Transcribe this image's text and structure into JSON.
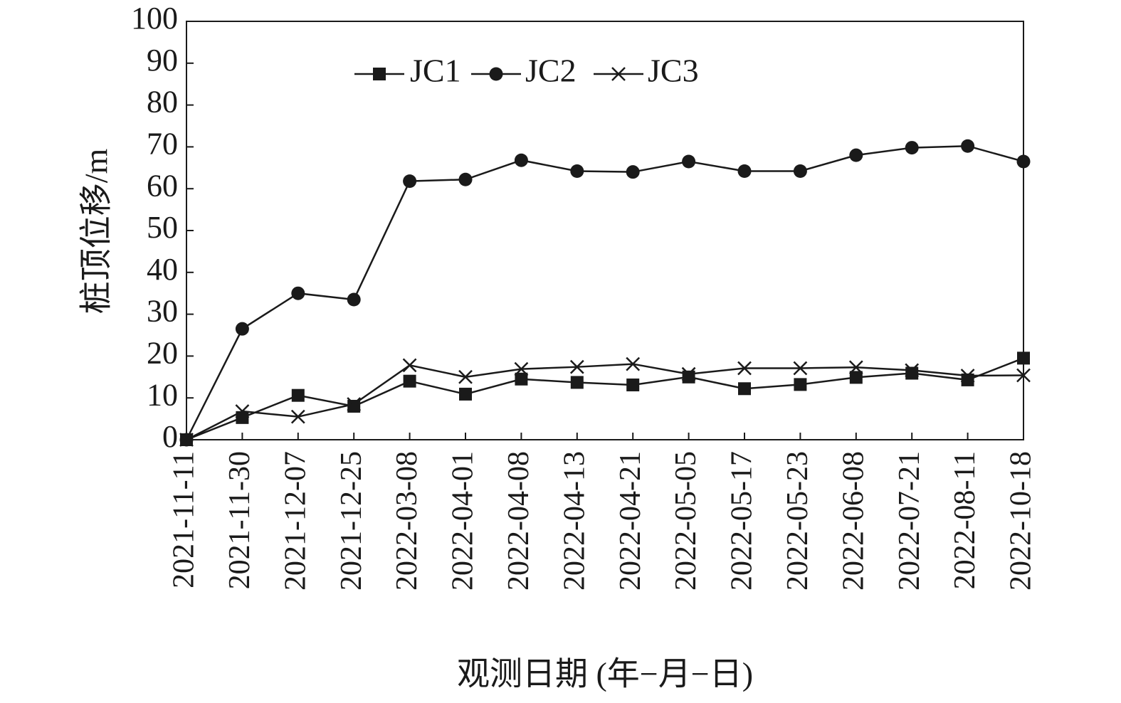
{
  "chart_data": {
    "type": "line",
    "title": "",
    "xlabel": "观测日期 (年−月−日)",
    "ylabel": "桩顶位移/m",
    "ylim": [
      0,
      100
    ],
    "yticks": [
      "0",
      "10",
      "20",
      "30",
      "40",
      "50",
      "60",
      "70",
      "80",
      "90",
      "100"
    ],
    "grid": false,
    "legend_position": "top-left",
    "categories": [
      "2021-11-11",
      "2021-11-30",
      "2021-12-07",
      "2021-12-25",
      "2022-03-08",
      "2022-04-01",
      "2022-04-08",
      "2022-04-13",
      "2022-04-21",
      "2022-05-05",
      "2022-05-17",
      "2022-05-23",
      "2022-06-08",
      "2022-07-21",
      "2022-08-11",
      "2022-10-18"
    ],
    "series": [
      {
        "name": "JC1",
        "marker": "square",
        "color": "#1a1a1a",
        "values": [
          0,
          5.3,
          10.6,
          8.0,
          14.0,
          10.9,
          14.5,
          13.7,
          13.1,
          15.0,
          12.2,
          13.2,
          14.9,
          15.9,
          14.3,
          19.5
        ]
      },
      {
        "name": "JC2",
        "marker": "circle",
        "color": "#1a1a1a",
        "values": [
          0,
          26.5,
          35.0,
          33.5,
          61.8,
          62.2,
          66.8,
          64.2,
          64.0,
          66.5,
          64.2,
          64.2,
          68.0,
          69.8,
          70.2,
          66.5
        ]
      },
      {
        "name": "JC3",
        "marker": "x",
        "color": "#1a1a1a",
        "values": [
          0,
          6.8,
          5.5,
          8.5,
          17.8,
          15.0,
          16.9,
          17.4,
          18.1,
          15.7,
          17.1,
          17.1,
          17.3,
          16.6,
          15.3,
          15.4
        ]
      }
    ]
  }
}
